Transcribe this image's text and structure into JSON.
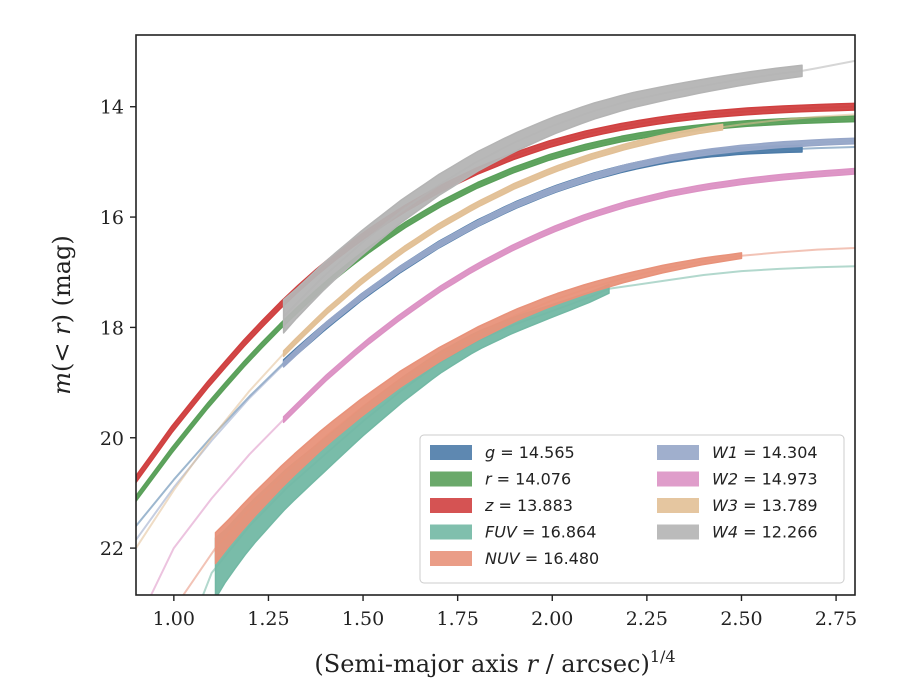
{
  "chart_data": {
    "type": "line",
    "xlabel": "(Semi-major axis r / arcsec)",
    "xlabel_italic": "r",
    "xlabel_exponent": "1/4",
    "ylabel": "m(< r) (mag)",
    "xlim": [
      0.9,
      2.8
    ],
    "ylim": [
      22.85,
      12.7
    ],
    "y_inverted": true,
    "x_ticks": [
      "1.00",
      "1.25",
      "1.50",
      "1.75",
      "2.00",
      "2.25",
      "2.50",
      "2.75"
    ],
    "y_ticks": [
      "14",
      "16",
      "18",
      "20",
      "22"
    ],
    "grid": false,
    "legend_position": "lower-right",
    "series": [
      {
        "name": "g = 14.565",
        "band": "g",
        "value": "14.565",
        "color": "#4c7ba8",
        "x": [
          0.9,
          1.0,
          1.1,
          1.2,
          1.3,
          1.4,
          1.5,
          1.6,
          1.7,
          1.8,
          1.9,
          2.0,
          2.1,
          2.2,
          2.3,
          2.4,
          2.5,
          2.6,
          2.66,
          2.7,
          2.8
        ],
        "y": [
          21.6,
          20.76,
          19.98,
          19.25,
          18.58,
          17.98,
          17.43,
          16.94,
          16.5,
          16.12,
          15.79,
          15.51,
          15.28,
          15.1,
          14.96,
          14.86,
          14.8,
          14.77,
          14.76,
          14.75,
          14.73
        ],
        "band_x": [
          1.29,
          2.66
        ],
        "band_halfwidth": 0.06
      },
      {
        "name": "r = 14.076",
        "band": "r",
        "value": "14.076",
        "color": "#5aa05a",
        "x": [
          0.9,
          1.0,
          1.1,
          1.2,
          1.3,
          1.4,
          1.5,
          1.6,
          1.7,
          1.8,
          1.9,
          2.0,
          2.1,
          2.2,
          2.3,
          2.4,
          2.5,
          2.6,
          2.7,
          2.8
        ],
        "y": [
          21.1,
          20.18,
          19.33,
          18.55,
          17.85,
          17.22,
          16.67,
          16.19,
          15.78,
          15.43,
          15.14,
          14.9,
          14.71,
          14.56,
          14.45,
          14.37,
          14.31,
          14.27,
          14.24,
          14.22
        ],
        "band_x": [
          0.9,
          2.8
        ],
        "band_halfwidth": 0.05
      },
      {
        "name": "z = 13.883",
        "band": "z",
        "value": "13.883",
        "color": "#d04040",
        "x": [
          0.9,
          1.0,
          1.1,
          1.2,
          1.3,
          1.4,
          1.5,
          1.6,
          1.7,
          1.8,
          1.9,
          2.0,
          2.1,
          2.2,
          2.3,
          2.4,
          2.5,
          2.6,
          2.7,
          2.8
        ],
        "y": [
          20.75,
          19.8,
          18.95,
          18.17,
          17.47,
          16.86,
          16.34,
          15.89,
          15.5,
          15.17,
          14.89,
          14.66,
          14.48,
          14.34,
          14.23,
          14.15,
          14.09,
          14.05,
          14.02,
          14.0
        ],
        "band_x": [
          0.9,
          2.8
        ],
        "band_halfwidth": 0.06
      },
      {
        "name": "FUV = 16.864",
        "band": "FUV",
        "value": "16.864",
        "color": "#72b8a4",
        "x": [
          1.04,
          1.1,
          1.2,
          1.3,
          1.4,
          1.5,
          1.6,
          1.7,
          1.8,
          1.9,
          2.0,
          2.1,
          2.15,
          2.2,
          2.3,
          2.4,
          2.5,
          2.6,
          2.7,
          2.8
        ],
        "y": [
          23.5,
          22.45,
          21.6,
          20.9,
          20.3,
          19.7,
          19.15,
          18.65,
          18.25,
          17.95,
          17.7,
          17.45,
          17.3,
          17.25,
          17.15,
          17.05,
          16.98,
          16.94,
          16.91,
          16.89
        ],
        "band_x": [
          1.11,
          2.15
        ],
        "band_halfwidth_start": 0.55,
        "band_halfwidth_end": 0.08
      },
      {
        "name": "NUV = 16.480",
        "band": "NUV",
        "value": "16.480",
        "color": "#e8927a",
        "x": [
          0.99,
          1.05,
          1.11,
          1.2,
          1.3,
          1.4,
          1.5,
          1.6,
          1.7,
          1.8,
          1.9,
          2.0,
          2.1,
          2.2,
          2.3,
          2.4,
          2.5,
          2.6,
          2.7,
          2.8
        ],
        "y": [
          23.2,
          22.6,
          22.0,
          21.3,
          20.6,
          19.98,
          19.43,
          18.93,
          18.5,
          18.12,
          17.79,
          17.51,
          17.28,
          17.09,
          16.93,
          16.8,
          16.7,
          16.64,
          16.59,
          16.56
        ],
        "band_x": [
          1.11,
          2.5
        ],
        "band_halfwidth_start": 0.28,
        "band_halfwidth_end": 0.05
      },
      {
        "name": "W1 = 14.304",
        "band": "W1",
        "value": "14.304",
        "color": "#96a6c8",
        "x": [
          0.9,
          1.0,
          1.1,
          1.2,
          1.3,
          1.4,
          1.5,
          1.6,
          1.7,
          1.8,
          1.9,
          2.0,
          2.1,
          2.2,
          2.3,
          2.4,
          2.5,
          2.6,
          2.7,
          2.8
        ],
        "y": [
          21.85,
          20.9,
          20.05,
          19.28,
          18.6,
          17.97,
          17.42,
          16.93,
          16.5,
          16.12,
          15.79,
          15.51,
          15.28,
          15.09,
          14.94,
          14.83,
          14.75,
          14.69,
          14.65,
          14.62
        ],
        "band_x": [
          1.29,
          2.8
        ],
        "band_halfwidth": 0.05
      },
      {
        "name": "W2 = 14.973",
        "band": "W2",
        "value": "14.973",
        "color": "#dc92c4",
        "x": [
          0.94,
          1.0,
          1.1,
          1.2,
          1.3,
          1.4,
          1.5,
          1.6,
          1.7,
          1.8,
          1.9,
          2.0,
          2.1,
          2.2,
          2.3,
          2.4,
          2.5,
          2.6,
          2.7,
          2.8
        ],
        "y": [
          22.85,
          22.0,
          21.1,
          20.3,
          19.6,
          18.93,
          18.33,
          17.8,
          17.32,
          16.9,
          16.54,
          16.23,
          15.97,
          15.76,
          15.59,
          15.46,
          15.36,
          15.28,
          15.22,
          15.17
        ],
        "band_x": [
          1.29,
          2.8
        ],
        "band_halfwidth": 0.05
      },
      {
        "name": "W3 = 13.789",
        "band": "W3",
        "value": "13.789",
        "color": "#e2c096",
        "x": [
          0.9,
          1.0,
          1.1,
          1.2,
          1.3,
          1.4,
          1.5,
          1.6,
          1.7,
          1.8,
          1.9,
          2.0,
          2.1,
          2.2,
          2.3,
          2.4,
          2.5,
          2.6,
          2.7,
          2.8
        ],
        "y": [
          22.0,
          20.95,
          20.0,
          19.15,
          18.4,
          17.73,
          17.14,
          16.62,
          16.17,
          15.78,
          15.44,
          15.15,
          14.91,
          14.71,
          14.55,
          14.42,
          14.32,
          14.24,
          14.18,
          14.14
        ],
        "band_x": [
          1.29,
          2.45
        ],
        "band_halfwidth": 0.05
      },
      {
        "name": "W4 = 12.266",
        "band": "W4",
        "value": "12.266",
        "color": "#b4b4b4",
        "x": [
          1.29,
          1.4,
          1.5,
          1.6,
          1.7,
          1.8,
          1.9,
          2.0,
          2.1,
          2.2,
          2.3,
          2.4,
          2.5,
          2.6,
          2.66,
          2.7,
          2.8
        ],
        "y": [
          17.8,
          17.05,
          16.45,
          15.9,
          15.42,
          15.0,
          14.65,
          14.35,
          14.1,
          13.9,
          13.75,
          13.62,
          13.5,
          13.4,
          13.35,
          13.3,
          13.17
        ],
        "band_x": [
          1.29,
          2.66
        ],
        "band_halfwidth_start": 0.3,
        "band_halfwidth_end": 0.1
      }
    ]
  }
}
